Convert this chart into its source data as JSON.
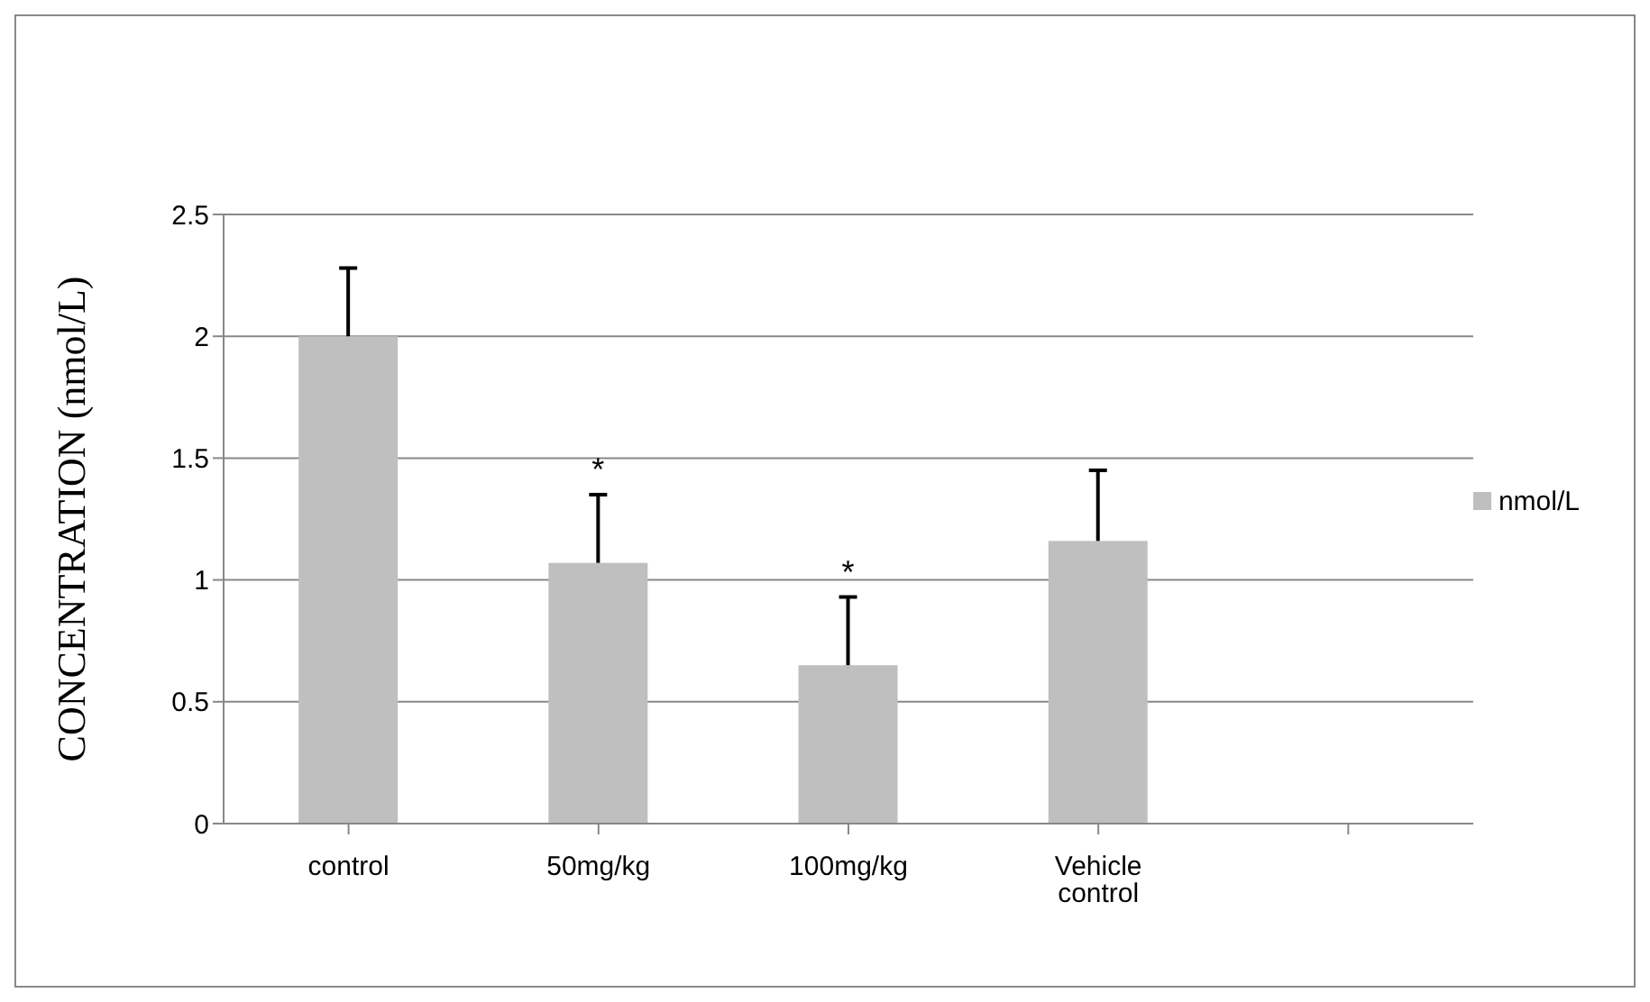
{
  "chart_data": {
    "type": "bar",
    "ylabel": "CONCENTRATION (nmol/L)",
    "categories": [
      "control",
      "50mg/kg",
      "100mg/kg",
      "Vehicle control",
      null
    ],
    "series": [
      {
        "name": "nmol/L",
        "color": "#bfbfbf",
        "values": [
          2.0,
          1.07,
          0.65,
          1.16,
          null
        ],
        "errors": [
          [
            2.0,
            2.28
          ],
          [
            1.07,
            1.35
          ],
          [
            0.65,
            0.93
          ],
          [
            1.16,
            1.45
          ],
          null
        ],
        "value_labels": [
          null,
          "*",
          "*",
          null,
          null
        ]
      }
    ],
    "ylim": [
      0,
      2.5
    ],
    "yticks": [
      0,
      0.5,
      1,
      1.5,
      2,
      2.5
    ],
    "grid": "y",
    "legend": "right"
  }
}
